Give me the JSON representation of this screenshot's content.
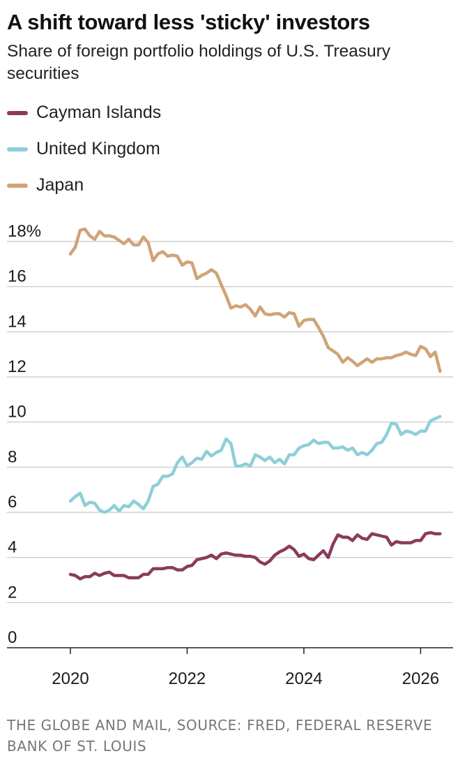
{
  "title": "A shift toward less 'sticky' investors",
  "subtitle": "Share of foreign portfolio holdings of U.S. Treasury securities",
  "source": "THE GLOBE AND MAIL, SOURCE: FRED, FEDERAL RESERVE BANK OF ST. LOUIS",
  "chart_data": {
    "type": "line",
    "title": "A shift toward less 'sticky' investors",
    "subtitle": "Share of foreign portfolio holdings of U.S. Treasury securities",
    "xlabel": "",
    "ylabel": "",
    "ylim": [
      0,
      18
    ],
    "yticks": [
      0,
      2,
      4,
      6,
      8,
      10,
      12,
      14,
      16,
      18
    ],
    "ytick_labels": [
      "0",
      "2",
      "4",
      "6",
      "8",
      "10",
      "12",
      "14",
      "16",
      "18%"
    ],
    "xlim": [
      2020,
      2026.5
    ],
    "xticks": [
      2020,
      2022,
      2024,
      2026
    ],
    "xtick_labels": [
      "2020",
      "2022",
      "2024",
      "2026"
    ],
    "grid": "horizontal",
    "legend": "top-left",
    "series": [
      {
        "name": "Cayman Islands",
        "color": "#8a3b5c",
        "x": [
          2020.0,
          2020.083,
          2020.167,
          2020.25,
          2020.333,
          2020.417,
          2020.5,
          2020.583,
          2020.667,
          2020.75,
          2020.833,
          2020.917,
          2021.0,
          2021.083,
          2021.167,
          2021.25,
          2021.333,
          2021.417,
          2021.5,
          2021.583,
          2021.667,
          2021.75,
          2021.833,
          2021.917,
          2022.0,
          2022.083,
          2022.167,
          2022.25,
          2022.333,
          2022.417,
          2022.5,
          2022.583,
          2022.667,
          2022.75,
          2022.833,
          2022.917,
          2023.0,
          2023.083,
          2023.167,
          2023.25,
          2023.333,
          2023.417,
          2023.5,
          2023.583,
          2023.667,
          2023.75,
          2023.833,
          2023.917,
          2024.0,
          2024.083,
          2024.167,
          2024.25,
          2024.333,
          2024.417,
          2024.5,
          2024.583,
          2024.667,
          2024.75,
          2024.833,
          2024.917,
          2025.0,
          2025.083,
          2025.167,
          2025.25,
          2025.333,
          2025.417,
          2025.5,
          2025.583,
          2025.667,
          2025.75,
          2025.833,
          2025.917,
          2026.0,
          2026.083,
          2026.167,
          2026.25,
          2026.333
        ],
        "values": [
          3.25,
          3.2,
          3.05,
          3.15,
          3.15,
          3.3,
          3.2,
          3.3,
          3.35,
          3.2,
          3.2,
          3.2,
          3.1,
          3.1,
          3.1,
          3.25,
          3.25,
          3.5,
          3.5,
          3.5,
          3.55,
          3.55,
          3.45,
          3.45,
          3.6,
          3.65,
          3.9,
          3.95,
          4.0,
          4.1,
          3.95,
          4.15,
          4.2,
          4.15,
          4.1,
          4.1,
          4.05,
          4.05,
          4.0,
          3.8,
          3.7,
          3.85,
          4.1,
          4.25,
          4.35,
          4.5,
          4.35,
          4.05,
          4.15,
          3.95,
          3.9,
          4.1,
          4.3,
          4.0,
          4.6,
          5.0,
          4.9,
          4.9,
          4.75,
          5.0,
          4.85,
          4.8,
          5.05,
          5.0,
          4.95,
          4.9,
          4.55,
          4.7,
          4.65,
          4.65,
          4.65,
          4.75,
          4.75,
          5.05,
          5.1,
          5.05,
          5.05
        ]
      },
      {
        "name": "United Kingdom",
        "color": "#8ecfd8",
        "x": [
          2020.0,
          2020.083,
          2020.167,
          2020.25,
          2020.333,
          2020.417,
          2020.5,
          2020.583,
          2020.667,
          2020.75,
          2020.833,
          2020.917,
          2021.0,
          2021.083,
          2021.167,
          2021.25,
          2021.333,
          2021.417,
          2021.5,
          2021.583,
          2021.667,
          2021.75,
          2021.833,
          2021.917,
          2022.0,
          2022.083,
          2022.167,
          2022.25,
          2022.333,
          2022.417,
          2022.5,
          2022.583,
          2022.667,
          2022.75,
          2022.833,
          2022.917,
          2023.0,
          2023.083,
          2023.167,
          2023.25,
          2023.333,
          2023.417,
          2023.5,
          2023.583,
          2023.667,
          2023.75,
          2023.833,
          2023.917,
          2024.0,
          2024.083,
          2024.167,
          2024.25,
          2024.333,
          2024.417,
          2024.5,
          2024.583,
          2024.667,
          2024.75,
          2024.833,
          2024.917,
          2025.0,
          2025.083,
          2025.167,
          2025.25,
          2025.333,
          2025.417,
          2025.5,
          2025.583,
          2025.667,
          2025.75,
          2025.833,
          2025.917,
          2026.0,
          2026.083,
          2026.167,
          2026.25,
          2026.333
        ],
        "values": [
          6.5,
          6.7,
          6.85,
          6.3,
          6.45,
          6.4,
          6.1,
          6.0,
          6.1,
          6.3,
          6.05,
          6.3,
          6.25,
          6.5,
          6.35,
          6.15,
          6.5,
          7.15,
          7.25,
          7.6,
          7.6,
          7.7,
          8.2,
          8.45,
          8.05,
          8.2,
          8.4,
          8.35,
          8.7,
          8.5,
          8.65,
          8.75,
          9.25,
          9.05,
          8.05,
          8.05,
          8.15,
          8.05,
          8.55,
          8.45,
          8.3,
          8.45,
          8.2,
          8.35,
          8.15,
          8.55,
          8.55,
          8.85,
          8.95,
          9.0,
          9.2,
          9.05,
          9.1,
          9.1,
          8.85,
          8.85,
          8.9,
          8.75,
          8.85,
          8.55,
          8.65,
          8.55,
          8.75,
          9.05,
          9.1,
          9.45,
          9.95,
          9.9,
          9.45,
          9.6,
          9.55,
          9.45,
          9.6,
          9.6,
          10.05,
          10.15,
          10.25
        ]
      },
      {
        "name": "Japan",
        "color": "#cfa476",
        "x": [
          2020.0,
          2020.083,
          2020.167,
          2020.25,
          2020.333,
          2020.417,
          2020.5,
          2020.583,
          2020.667,
          2020.75,
          2020.833,
          2020.917,
          2021.0,
          2021.083,
          2021.167,
          2021.25,
          2021.333,
          2021.417,
          2021.5,
          2021.583,
          2021.667,
          2021.75,
          2021.833,
          2021.917,
          2022.0,
          2022.083,
          2022.167,
          2022.25,
          2022.333,
          2022.417,
          2022.5,
          2022.583,
          2022.667,
          2022.75,
          2022.833,
          2022.917,
          2023.0,
          2023.083,
          2023.167,
          2023.25,
          2023.333,
          2023.417,
          2023.5,
          2023.583,
          2023.667,
          2023.75,
          2023.833,
          2023.917,
          2024.0,
          2024.083,
          2024.167,
          2024.25,
          2024.333,
          2024.417,
          2024.5,
          2024.583,
          2024.667,
          2024.75,
          2024.833,
          2024.917,
          2025.0,
          2025.083,
          2025.167,
          2025.25,
          2025.333,
          2025.417,
          2025.5,
          2025.583,
          2025.667,
          2025.75,
          2025.833,
          2025.917,
          2026.0,
          2026.083,
          2026.167,
          2026.25,
          2026.333
        ],
        "values": [
          17.45,
          17.75,
          18.5,
          18.55,
          18.25,
          18.1,
          18.45,
          18.25,
          18.25,
          18.2,
          18.05,
          17.9,
          18.1,
          17.85,
          17.85,
          18.2,
          17.95,
          17.15,
          17.45,
          17.55,
          17.35,
          17.4,
          17.35,
          16.95,
          17.1,
          17.05,
          16.35,
          16.5,
          16.6,
          16.75,
          16.6,
          16.1,
          15.6,
          15.05,
          15.15,
          15.1,
          15.2,
          15.0,
          14.7,
          15.1,
          14.8,
          14.75,
          14.8,
          14.8,
          14.65,
          14.85,
          14.8,
          14.25,
          14.5,
          14.55,
          14.55,
          14.2,
          13.8,
          13.3,
          13.15,
          13.0,
          12.65,
          12.85,
          12.7,
          12.5,
          12.65,
          12.8,
          12.65,
          12.8,
          12.8,
          12.85,
          12.85,
          12.95,
          13.0,
          13.1,
          13.0,
          12.95,
          13.35,
          13.25,
          12.9,
          13.1,
          12.25
        ]
      }
    ]
  }
}
